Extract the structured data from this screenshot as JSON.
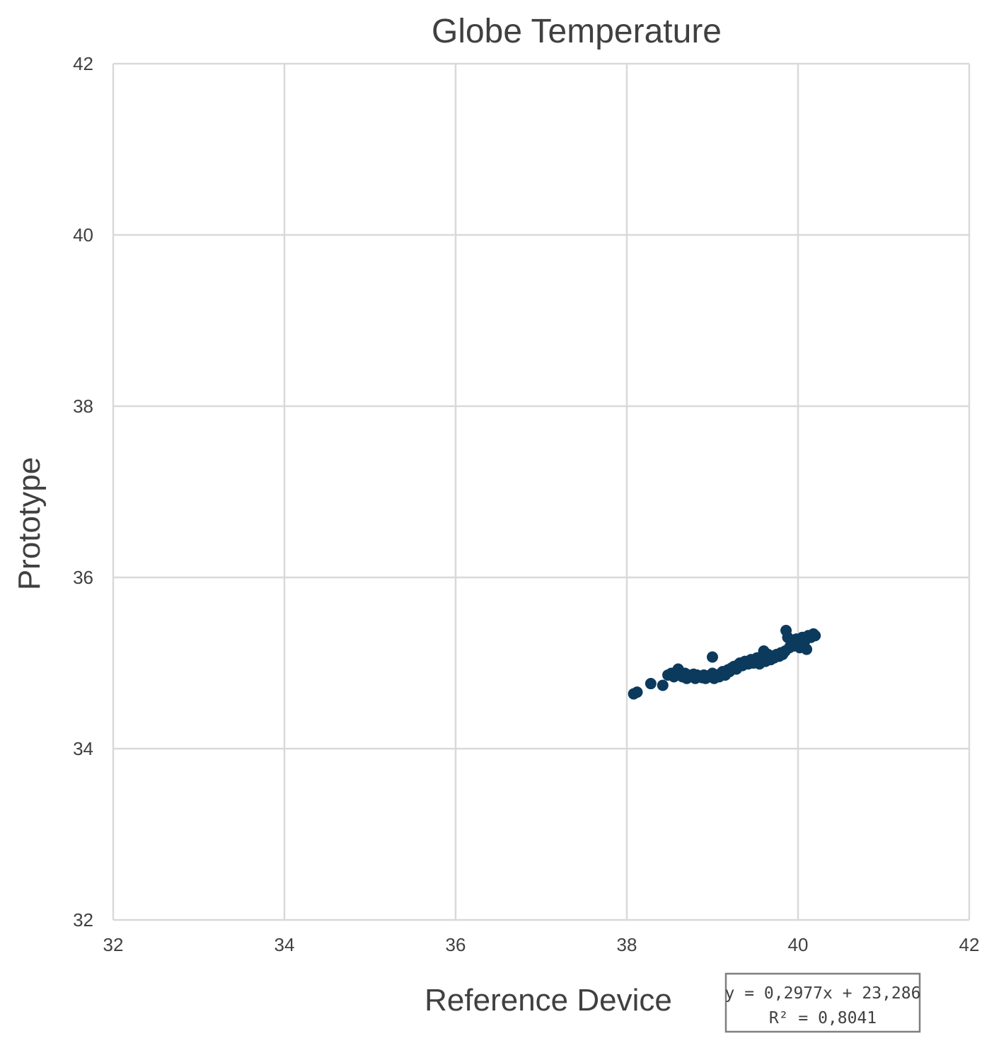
{
  "chart_data": {
    "type": "scatter",
    "title": "Globe Temperature",
    "xlabel": "Reference Device",
    "ylabel": "Prototype",
    "xlim": [
      32,
      42
    ],
    "ylim": [
      32,
      42
    ],
    "xticks": [
      "32",
      "34",
      "36",
      "38",
      "40",
      "42"
    ],
    "yticks": [
      "32",
      "34",
      "36",
      "38",
      "40",
      "42"
    ],
    "grid": true,
    "legend": "none",
    "marker_color": "#0b3a5c",
    "series": [
      {
        "x": [
          38.08,
          38.12,
          38.28,
          38.42,
          38.48,
          38.52,
          38.55,
          38.58,
          38.6,
          38.62,
          38.65,
          38.68,
          38.7,
          38.72,
          38.75,
          38.78,
          38.8,
          38.82,
          38.85,
          38.88,
          38.9,
          38.92,
          38.95,
          38.98,
          39.0,
          39.0,
          39.02,
          39.05,
          39.08,
          39.1,
          39.12,
          39.15,
          39.18,
          39.2,
          39.22,
          39.25,
          39.28,
          39.3,
          39.32,
          39.35,
          39.38,
          39.4,
          39.42,
          39.45,
          39.48,
          39.5,
          39.52,
          39.55,
          39.58,
          39.6,
          39.62,
          39.65,
          39.68,
          39.7,
          39.72,
          39.75,
          39.78,
          39.8,
          39.82,
          39.85,
          39.86,
          39.88,
          39.9,
          39.92,
          39.95,
          39.98,
          40.0,
          40.02,
          40.05,
          40.08,
          40.1,
          40.12,
          40.15,
          40.18,
          40.2
        ],
        "y": [
          34.64,
          34.66,
          34.76,
          34.74,
          34.86,
          34.88,
          34.84,
          34.9,
          34.93,
          34.86,
          34.84,
          34.88,
          34.82,
          34.86,
          34.84,
          34.87,
          34.82,
          34.86,
          34.84,
          34.83,
          34.86,
          34.82,
          34.85,
          34.84,
          35.07,
          34.88,
          34.82,
          34.86,
          34.84,
          34.88,
          34.9,
          34.86,
          34.92,
          34.9,
          34.94,
          34.96,
          34.93,
          34.98,
          35.0,
          34.97,
          35.02,
          35.0,
          34.99,
          35.04,
          35.0,
          35.02,
          35.06,
          34.99,
          35.08,
          35.14,
          35.02,
          35.1,
          35.04,
          35.08,
          35.06,
          35.1,
          35.08,
          35.12,
          35.1,
          35.14,
          35.38,
          35.3,
          35.18,
          35.24,
          35.2,
          35.28,
          35.22,
          35.18,
          35.3,
          35.26,
          35.16,
          35.32,
          35.3,
          35.34,
          35.32
        ]
      }
    ],
    "trendline": {
      "slope": 0.2977,
      "intercept": 23.286,
      "equation": "y = 0,2977x + 23,286",
      "r2": "R² = 0,8041"
    }
  }
}
